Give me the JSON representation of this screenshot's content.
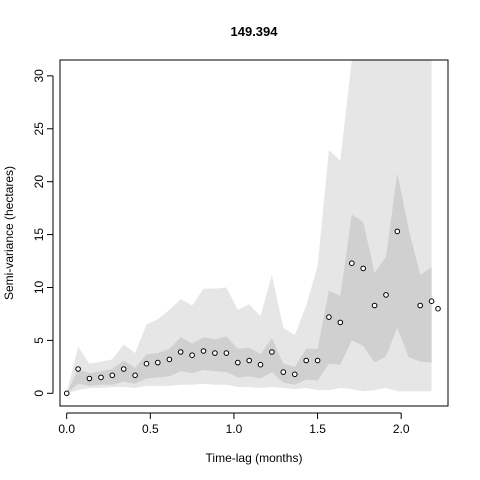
{
  "chart_data": {
    "type": "scatter",
    "title": "149.394",
    "xlabel": "Time-lag (months)",
    "ylabel": "Semi-variance (hectares)",
    "xlim": [
      -0.04,
      2.28
    ],
    "ylim": [
      -1.2,
      31.5
    ],
    "x_ticks": [
      0.0,
      0.5,
      1.0,
      1.5,
      2.0
    ],
    "x_tick_labels": [
      "0.0",
      "0.5",
      "1.0",
      "1.5",
      "2.0"
    ],
    "y_ticks": [
      0,
      5,
      10,
      15,
      20,
      25,
      30
    ],
    "y_tick_labels": [
      "0",
      "5",
      "10",
      "15",
      "20",
      "25",
      "30"
    ],
    "grid": false,
    "colors": {
      "outer_band": "#e6e6e6",
      "inner_band": "#d0d0d0",
      "points": "#000000",
      "axis": "#000000"
    },
    "x": [
      0.0,
      0.068,
      0.136,
      0.205,
      0.273,
      0.341,
      0.409,
      0.477,
      0.545,
      0.614,
      0.682,
      0.75,
      0.818,
      0.886,
      0.955,
      1.023,
      1.091,
      1.159,
      1.227,
      1.295,
      1.364,
      1.432,
      1.5,
      1.568,
      1.636,
      1.705,
      1.773,
      1.841,
      1.909,
      1.977,
      2.045,
      2.114,
      2.182
    ],
    "series": [
      {
        "values": [
          0.0,
          2.3,
          1.4,
          1.5,
          1.7,
          2.3,
          1.7,
          2.8,
          2.9,
          3.2,
          3.9,
          3.6,
          4.0,
          3.8,
          3.8,
          2.9,
          3.1,
          2.7,
          3.9,
          2.0,
          1.8,
          3.1,
          3.1,
          7.2,
          6.7,
          12.3,
          11.8,
          8.3,
          9.3,
          15.3,
          null,
          8.3,
          8.7
        ]
      }
    ],
    "extra_points": [
      {
        "x": 2.22,
        "y": 8.0
      }
    ],
    "bands": {
      "outer_lower": [
        0.0,
        0.3,
        0.5,
        0.5,
        0.6,
        0.6,
        0.5,
        0.7,
        0.7,
        0.7,
        0.8,
        0.8,
        0.9,
        0.8,
        0.8,
        0.6,
        0.6,
        0.5,
        0.6,
        0.5,
        0.4,
        0.5,
        0.3,
        0.3,
        0.5,
        0.4,
        0.2,
        0.3,
        0.5,
        0.2,
        0.2,
        0.2,
        0.2
      ],
      "outer_upper": [
        0.0,
        4.4,
        2.8,
        3.0,
        3.2,
        4.6,
        3.8,
        6.5,
        7.0,
        7.9,
        8.9,
        8.3,
        9.9,
        9.9,
        10.0,
        7.9,
        8.4,
        7.3,
        11.2,
        6.2,
        5.5,
        8.3,
        12.0,
        23.0,
        22.0,
        31.5,
        31.5,
        31.5,
        31.5,
        31.5,
        31.5,
        31.5,
        31.5
      ],
      "inner_lower": [
        0.0,
        0.9,
        0.7,
        0.8,
        0.8,
        1.1,
        0.9,
        1.4,
        1.5,
        1.6,
        2.1,
        1.9,
        2.2,
        2.1,
        2.0,
        1.5,
        1.6,
        1.4,
        2.0,
        1.0,
        0.8,
        1.3,
        1.2,
        2.8,
        2.7,
        5.0,
        4.5,
        2.9,
        3.5,
        6.2,
        3.4,
        3.0,
        2.9
      ],
      "inner_upper": [
        0.0,
        2.3,
        1.9,
        2.1,
        2.3,
        3.1,
        2.4,
        3.7,
        3.8,
        4.2,
        5.3,
        4.7,
        5.3,
        5.1,
        5.4,
        4.2,
        4.3,
        3.7,
        5.2,
        2.8,
        2.5,
        4.2,
        4.2,
        9.7,
        9.2,
        16.9,
        16.2,
        11.4,
        12.9,
        20.8,
        15.5,
        11.2,
        11.9
      ]
    }
  }
}
